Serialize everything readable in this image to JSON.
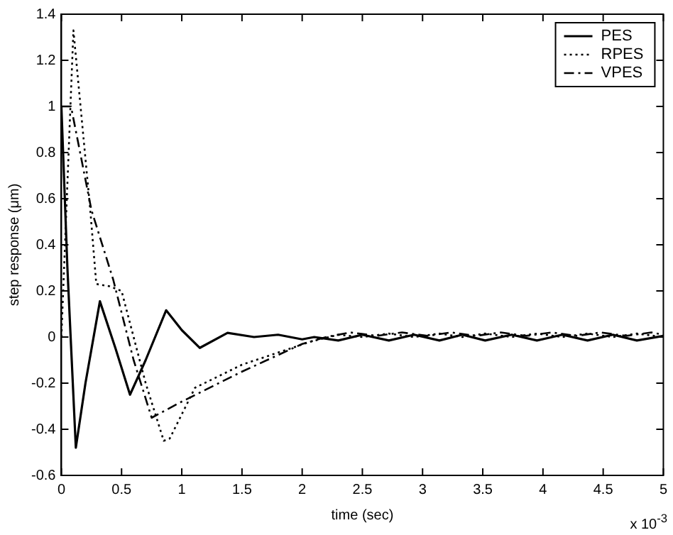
{
  "chart_data": {
    "type": "line",
    "xlabel": "time (sec)",
    "ylabel": "step response (μm)",
    "annotations": [
      "x 10$^{-3}$"
    ],
    "xlim": [
      0,
      5
    ],
    "xticks": [
      0,
      0.5,
      1,
      1.5,
      2,
      2.5,
      3,
      3.5,
      4,
      4.5,
      5
    ],
    "ylim": [
      -0.6,
      1.4
    ],
    "yticks": [
      -0.6,
      -0.4,
      -0.2,
      0,
      0.2,
      0.4,
      0.6,
      0.8,
      1,
      1.2,
      1.4
    ],
    "legend": "top right",
    "grid": false,
    "marker": "none",
    "series": [
      {
        "name": "PES",
        "color": "#000000",
        "line_style": "solid",
        "x": [
          0,
          0.05,
          0.12,
          0.2,
          0.32,
          0.45,
          0.57,
          0.7,
          0.87,
          1.0,
          1.15,
          1.38,
          1.6,
          1.8,
          2.0,
          2.1,
          2.3,
          2.5,
          2.72,
          2.93,
          3.14,
          3.33,
          3.52,
          3.74,
          3.95,
          4.16,
          4.37,
          4.58,
          4.78,
          5.0
        ],
        "values": [
          1.0,
          0.3,
          -0.48,
          -0.2,
          0.155,
          -0.05,
          -0.25,
          -0.1,
          0.116,
          0.03,
          -0.047,
          0.018,
          0.0,
          0.01,
          -0.01,
          0.0,
          -0.015,
          0.01,
          -0.015,
          0.01,
          -0.015,
          0.01,
          -0.015,
          0.01,
          -0.015,
          0.01,
          -0.015,
          0.01,
          -0.015,
          0.005
        ]
      },
      {
        "name": "RPES",
        "color": "#000000",
        "line_style": "dotted",
        "x": [
          0,
          0.1,
          0.24,
          0.29,
          0.4,
          0.5,
          0.7,
          0.85,
          0.9,
          1.11,
          1.5,
          2.07,
          2.3,
          2.5,
          2.72,
          2.93,
          3.14,
          3.33,
          3.52,
          3.74,
          3.95,
          4.16,
          4.37,
          4.58,
          4.78,
          5.0
        ],
        "values": [
          0,
          1.33,
          0.55,
          0.23,
          0.22,
          0.2,
          -0.2,
          -0.45,
          -0.44,
          -0.22,
          -0.12,
          -0.02,
          0.01,
          0.0,
          0.015,
          0.0,
          0.015,
          0.0,
          0.015,
          0.0,
          0.015,
          0.0,
          0.015,
          0.0,
          0.015,
          0.0
        ]
      },
      {
        "name": "VPES",
        "color": "#000000",
        "line_style": "dashdot",
        "x": [
          0,
          0.08,
          0.25,
          0.43,
          0.6,
          0.75,
          1.0,
          1.5,
          2.0,
          2.2,
          2.4,
          2.62,
          2.83,
          3.04,
          3.24,
          3.44,
          3.65,
          3.86,
          4.07,
          4.28,
          4.48,
          4.69,
          4.9,
          5.0
        ],
        "values": [
          1.0,
          1.0,
          0.55,
          0.25,
          -0.1,
          -0.35,
          -0.28,
          -0.15,
          -0.03,
          0.0,
          0.02,
          0.005,
          0.02,
          0.005,
          0.02,
          0.005,
          0.02,
          0.005,
          0.02,
          0.005,
          0.02,
          0.005,
          0.02,
          0.01
        ]
      }
    ]
  }
}
